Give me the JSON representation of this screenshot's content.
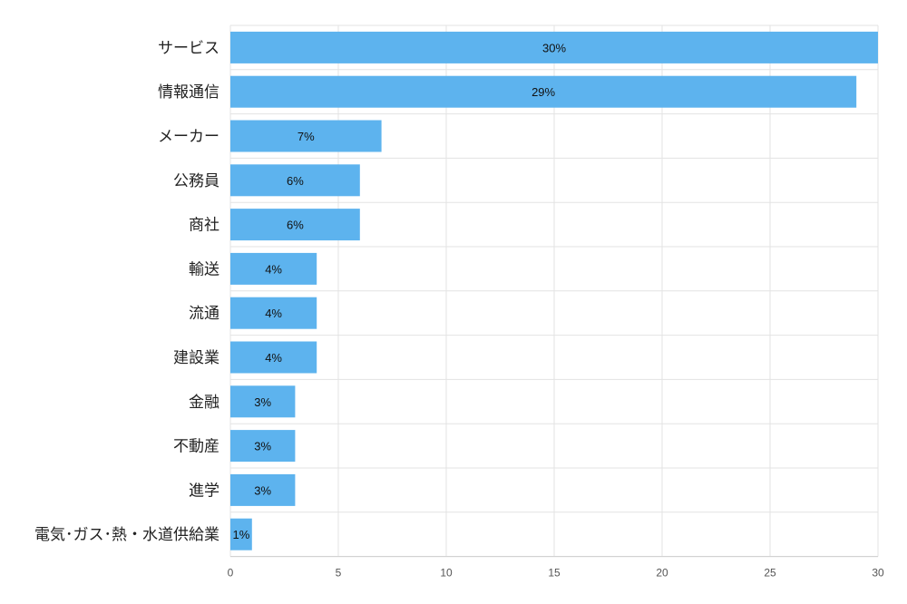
{
  "chart_data": {
    "type": "bar",
    "orientation": "horizontal",
    "categories": [
      "サービス",
      "情報通信",
      "メーカー",
      "公務員",
      "商社",
      "輸送",
      "流通",
      "建設業",
      "金融",
      "不動産",
      "進学",
      "電気･ガス･熱・水道供給業"
    ],
    "values": [
      30,
      29,
      7,
      6,
      6,
      4,
      4,
      4,
      3,
      3,
      3,
      1
    ],
    "data_labels": [
      "30%",
      "29%",
      "7%",
      "6%",
      "6%",
      "4%",
      "4%",
      "4%",
      "3%",
      "3%",
      "3%",
      "1%"
    ],
    "x_ticks": [
      "0",
      "5",
      "10",
      "15",
      "20",
      "25",
      "30"
    ],
    "xlim": [
      0,
      30
    ],
    "grid": true,
    "bar_color": "#5db3ee",
    "title": "",
    "xlabel": "",
    "ylabel": ""
  }
}
